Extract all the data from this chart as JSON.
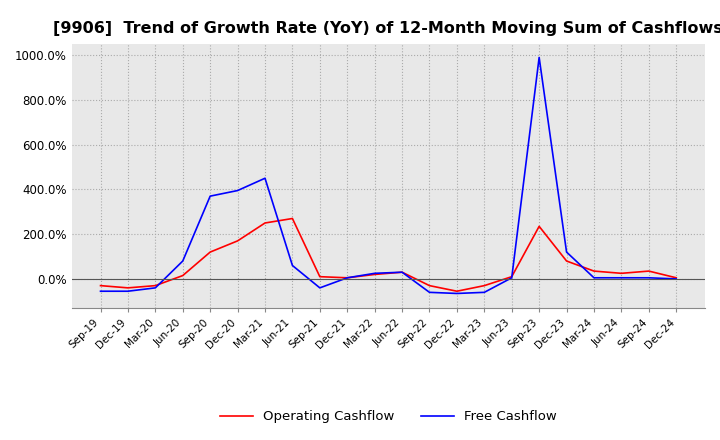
{
  "title": "[9906]  Trend of Growth Rate (YoY) of 12-Month Moving Sum of Cashflows",
  "title_fontsize": 11.5,
  "ylim": [
    -130,
    1050
  ],
  "yticks": [
    0,
    200,
    400,
    600,
    800,
    1000
  ],
  "ytick_labels": [
    "0.0%",
    "200.0%",
    "400.0%",
    "600.0%",
    "800.0%",
    "1000.0%"
  ],
  "background_color": "#ffffff",
  "plot_bg_color": "#e8e8e8",
  "grid_color": "#aaaaaa",
  "legend_labels": [
    "Operating Cashflow",
    "Free Cashflow"
  ],
  "legend_colors": [
    "#ff0000",
    "#0000ff"
  ],
  "x_labels": [
    "Sep-19",
    "Dec-19",
    "Mar-20",
    "Jun-20",
    "Sep-20",
    "Dec-20",
    "Mar-21",
    "Jun-21",
    "Sep-21",
    "Dec-21",
    "Mar-22",
    "Jun-22",
    "Sep-22",
    "Dec-22",
    "Mar-23",
    "Jun-23",
    "Sep-23",
    "Dec-23",
    "Mar-24",
    "Jun-24",
    "Sep-24",
    "Dec-24"
  ],
  "operating_cashflow": [
    -30,
    -40,
    -30,
    15,
    120,
    170,
    250,
    270,
    10,
    5,
    20,
    30,
    -30,
    -55,
    -30,
    10,
    235,
    80,
    35,
    25,
    35,
    5
  ],
  "free_cashflow": [
    -55,
    -55,
    -40,
    80,
    370,
    395,
    450,
    60,
    -40,
    5,
    25,
    30,
    -60,
    -65,
    -60,
    5,
    990,
    120,
    5,
    5,
    5,
    0
  ]
}
